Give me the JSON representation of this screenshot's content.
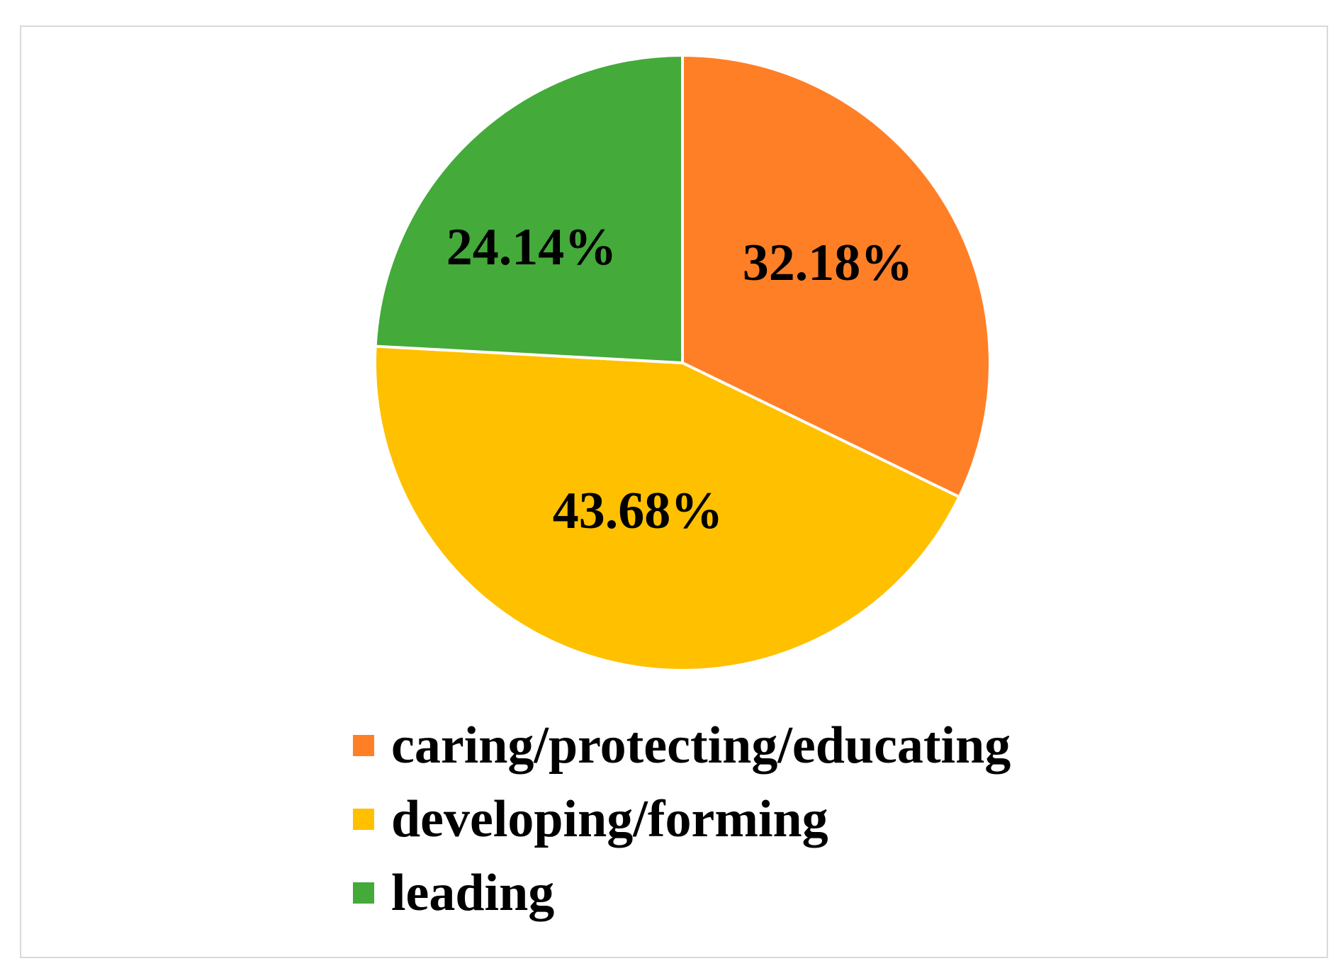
{
  "chart_data": {
    "type": "pie",
    "title": "",
    "slices": [
      {
        "label": "caring/protecting/educating",
        "value": 32.18,
        "display": "32.18%",
        "color": "#FF7F27"
      },
      {
        "label": "developing/forming",
        "value": 43.68,
        "display": "43.68%",
        "color": "#FFC000"
      },
      {
        "label": "leading",
        "value": 24.14,
        "display": "24.14%",
        "color": "#44AA3A"
      }
    ],
    "start": "top (12 o'clock), clockwise",
    "legend_position": "bottom"
  }
}
